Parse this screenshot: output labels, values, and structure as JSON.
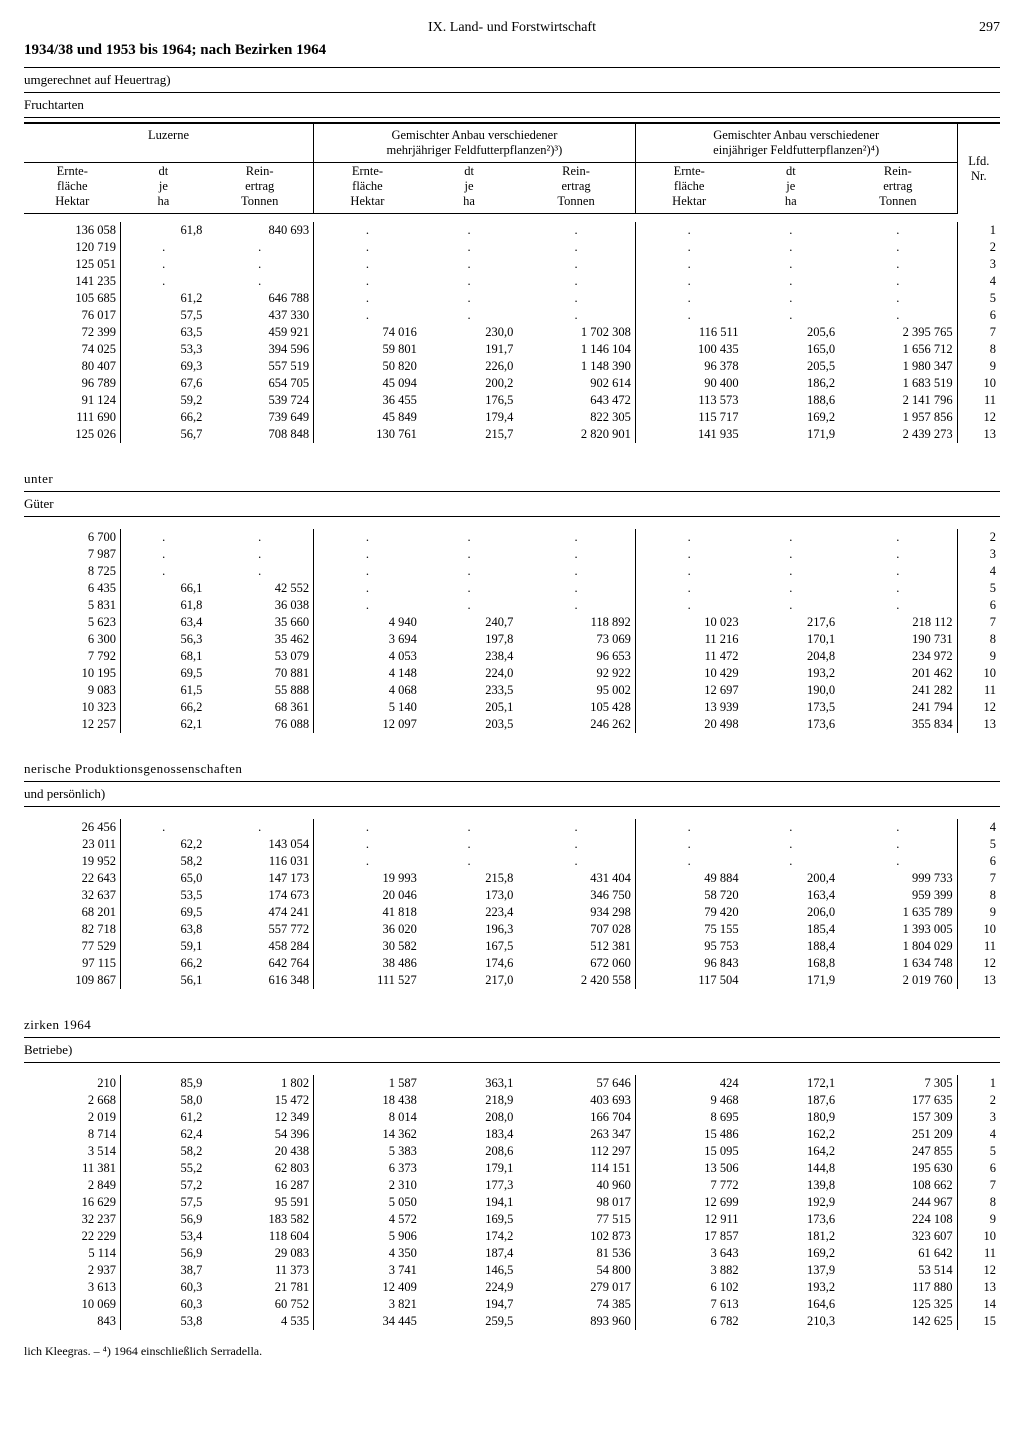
{
  "page": {
    "chapter": "IX. Land- und Forstwirtschaft",
    "number": "297"
  },
  "main_title": "1934/38 und 1953 bis 1964; nach Bezirken 1964",
  "sub_note": "umgerechnet auf Heuertrag)",
  "sub_note2": "Fruchtarten",
  "lfd_label": "Lfd.\nNr.",
  "groups": [
    {
      "title": "Luzerne",
      "cols": [
        "Ernte-\nfläche\nHektar",
        "dt\nje\nha",
        "Rein-\nertrag\nTonnen"
      ]
    },
    {
      "title": "Gemischter Anbau verschiedener\nmehrjähriger Feldfutterpflanzen²)³)",
      "cols": [
        "Ernte-\nfläche\nHektar",
        "dt\nje\nha",
        "Rein-\nertrag\nTonnen"
      ]
    },
    {
      "title": "Gemischter Anbau verschiedener\neinjähriger Feldfutterpflanzen²)⁴)",
      "cols": [
        "Ernte-\nfläche\nHektar",
        "dt\nje\nha",
        "Rein-\nertrag\nTonnen"
      ]
    }
  ],
  "sections": [
    {
      "title": "",
      "sub": "",
      "rows": [
        [
          "136 058",
          "61,8",
          "840 693",
          ".",
          ".",
          ".",
          ".",
          ".",
          ".",
          "1"
        ],
        [
          "120 719",
          ".",
          ".",
          ".",
          ".",
          ".",
          ".",
          ".",
          ".",
          "2"
        ],
        [
          "125 051",
          ".",
          ".",
          ".",
          ".",
          ".",
          ".",
          ".",
          ".",
          "3"
        ],
        [
          "141 235",
          ".",
          ".",
          ".",
          ".",
          ".",
          ".",
          ".",
          ".",
          "4"
        ],
        [
          "105 685",
          "61,2",
          "646 788",
          ".",
          ".",
          ".",
          ".",
          ".",
          ".",
          "5"
        ],
        [
          "76 017",
          "57,5",
          "437 330",
          ".",
          ".",
          ".",
          ".",
          ".",
          ".",
          "6"
        ],
        [
          "72 399",
          "63,5",
          "459 921",
          "74 016",
          "230,0",
          "1 702 308",
          "116 511",
          "205,6",
          "2 395 765",
          "7"
        ],
        [
          "74 025",
          "53,3",
          "394 596",
          "59 801",
          "191,7",
          "1 146 104",
          "100 435",
          "165,0",
          "1 656 712",
          "8"
        ],
        [
          "80 407",
          "69,3",
          "557 519",
          "50 820",
          "226,0",
          "1 148 390",
          "96 378",
          "205,5",
          "1 980 347",
          "9"
        ],
        [
          "96 789",
          "67,6",
          "654 705",
          "45 094",
          "200,2",
          "902 614",
          "90 400",
          "186,2",
          "1 683 519",
          "10"
        ],
        [
          "91 124",
          "59,2",
          "539 724",
          "36 455",
          "176,5",
          "643 472",
          "113 573",
          "188,6",
          "2 141 796",
          "11"
        ],
        [
          "111 690",
          "66,2",
          "739 649",
          "45 849",
          "179,4",
          "822 305",
          "115 717",
          "169,2",
          "1 957 856",
          "12"
        ],
        [
          "125 026",
          "56,7",
          "708 848",
          "130 761",
          "215,7",
          "2 820 901",
          "141 935",
          "171,9",
          "2 439 273",
          "13"
        ]
      ]
    },
    {
      "title": "unter",
      "sub": "Güter",
      "rows": [
        [
          "6 700",
          ".",
          ".",
          ".",
          ".",
          ".",
          ".",
          ".",
          ".",
          "2"
        ],
        [
          "7 987",
          ".",
          ".",
          ".",
          ".",
          ".",
          ".",
          ".",
          ".",
          "3"
        ],
        [
          "8 725",
          ".",
          ".",
          ".",
          ".",
          ".",
          ".",
          ".",
          ".",
          "4"
        ],
        [
          "6 435",
          "66,1",
          "42 552",
          ".",
          ".",
          ".",
          ".",
          ".",
          ".",
          "5"
        ],
        [
          "5 831",
          "61,8",
          "36 038",
          ".",
          ".",
          ".",
          ".",
          ".",
          ".",
          "6"
        ],
        [
          "5 623",
          "63,4",
          "35 660",
          "4 940",
          "240,7",
          "118 892",
          "10 023",
          "217,6",
          "218 112",
          "7"
        ],
        [
          "6 300",
          "56,3",
          "35 462",
          "3 694",
          "197,8",
          "73 069",
          "11 216",
          "170,1",
          "190 731",
          "8"
        ],
        [
          "7 792",
          "68,1",
          "53 079",
          "4 053",
          "238,4",
          "96 653",
          "11 472",
          "204,8",
          "234 972",
          "9"
        ],
        [
          "10 195",
          "69,5",
          "70 881",
          "4 148",
          "224,0",
          "92 922",
          "10 429",
          "193,2",
          "201 462",
          "10"
        ],
        [
          "9 083",
          "61,5",
          "55 888",
          "4 068",
          "233,5",
          "95 002",
          "12 697",
          "190,0",
          "241 282",
          "11"
        ],
        [
          "10 323",
          "66,2",
          "68 361",
          "5 140",
          "205,1",
          "105 428",
          "13 939",
          "173,5",
          "241 794",
          "12"
        ],
        [
          "12 257",
          "62,1",
          "76 088",
          "12 097",
          "203,5",
          "246 262",
          "20 498",
          "173,6",
          "355 834",
          "13"
        ]
      ]
    },
    {
      "title": "nerische Produktionsgenossenschaften",
      "sub": "und persönlich)",
      "rows": [
        [
          "26 456",
          ".",
          ".",
          ".",
          ".",
          ".",
          ".",
          ".",
          ".",
          "4"
        ],
        [
          "23 011",
          "62,2",
          "143 054",
          ".",
          ".",
          ".",
          ".",
          ".",
          ".",
          "5"
        ],
        [
          "19 952",
          "58,2",
          "116 031",
          ".",
          ".",
          ".",
          ".",
          ".",
          ".",
          "6"
        ],
        [
          "22 643",
          "65,0",
          "147 173",
          "19 993",
          "215,8",
          "431 404",
          "49 884",
          "200,4",
          "999 733",
          "7"
        ],
        [
          "32 637",
          "53,5",
          "174 673",
          "20 046",
          "173,0",
          "346 750",
          "58 720",
          "163,4",
          "959 399",
          "8"
        ],
        [
          "68 201",
          "69,5",
          "474 241",
          "41 818",
          "223,4",
          "934 298",
          "79 420",
          "206,0",
          "1 635 789",
          "9"
        ],
        [
          "82 718",
          "63,8",
          "557 772",
          "36 020",
          "196,3",
          "707 028",
          "75 155",
          "185,4",
          "1 393 005",
          "10"
        ],
        [
          "77 529",
          "59,1",
          "458 284",
          "30 582",
          "167,5",
          "512 381",
          "95 753",
          "188,4",
          "1 804 029",
          "11"
        ],
        [
          "97 115",
          "66,2",
          "642 764",
          "38 486",
          "174,6",
          "672 060",
          "96 843",
          "168,8",
          "1 634 748",
          "12"
        ],
        [
          "109 867",
          "56,1",
          "616 348",
          "111 527",
          "217,0",
          "2 420 558",
          "117 504",
          "171,9",
          "2 019 760",
          "13"
        ]
      ]
    },
    {
      "title": "zirken 1964",
      "sub": "Betriebe)",
      "rows": [
        [
          "210",
          "85,9",
          "1 802",
          "1 587",
          "363,1",
          "57 646",
          "424",
          "172,1",
          "7 305",
          "1"
        ],
        [
          "2 668",
          "58,0",
          "15 472",
          "18 438",
          "218,9",
          "403 693",
          "9 468",
          "187,6",
          "177 635",
          "2"
        ],
        [
          "2 019",
          "61,2",
          "12 349",
          "8 014",
          "208,0",
          "166 704",
          "8 695",
          "180,9",
          "157 309",
          "3"
        ],
        [
          "8 714",
          "62,4",
          "54 396",
          "14 362",
          "183,4",
          "263 347",
          "15 486",
          "162,2",
          "251 209",
          "4"
        ],
        [
          "3 514",
          "58,2",
          "20 438",
          "5 383",
          "208,6",
          "112 297",
          "15 095",
          "164,2",
          "247 855",
          "5"
        ],
        [
          "11 381",
          "55,2",
          "62 803",
          "6 373",
          "179,1",
          "114 151",
          "13 506",
          "144,8",
          "195 630",
          "6"
        ],
        [
          "2 849",
          "57,2",
          "16 287",
          "2 310",
          "177,3",
          "40 960",
          "7 772",
          "139,8",
          "108 662",
          "7"
        ],
        [
          "16 629",
          "57,5",
          "95 591",
          "5 050",
          "194,1",
          "98 017",
          "12 699",
          "192,9",
          "244 967",
          "8"
        ],
        [
          "32 237",
          "56,9",
          "183 582",
          "4 572",
          "169,5",
          "77 515",
          "12 911",
          "173,6",
          "224 108",
          "9"
        ],
        [
          "22 229",
          "53,4",
          "118 604",
          "5 906",
          "174,2",
          "102 873",
          "17 857",
          "181,2",
          "323 607",
          "10"
        ],
        [
          "5 114",
          "56,9",
          "29 083",
          "4 350",
          "187,4",
          "81 536",
          "3 643",
          "169,2",
          "61 642",
          "11"
        ],
        [
          "2 937",
          "38,7",
          "11 373",
          "3 741",
          "146,5",
          "54 800",
          "3 882",
          "137,9",
          "53 514",
          "12"
        ],
        [
          "3 613",
          "60,3",
          "21 781",
          "12 409",
          "224,9",
          "279 017",
          "6 102",
          "193,2",
          "117 880",
          "13"
        ],
        [
          "10 069",
          "60,3",
          "60 752",
          "3 821",
          "194,7",
          "74 385",
          "7 613",
          "164,6",
          "125 325",
          "14"
        ],
        [
          "843",
          "53,8",
          "4 535",
          "34 445",
          "259,5",
          "893 960",
          "6 782",
          "210,3",
          "142 625",
          "15"
        ]
      ]
    }
  ],
  "footnote": "lich Kleegras. – ⁴) 1964 einschließlich Serradella."
}
